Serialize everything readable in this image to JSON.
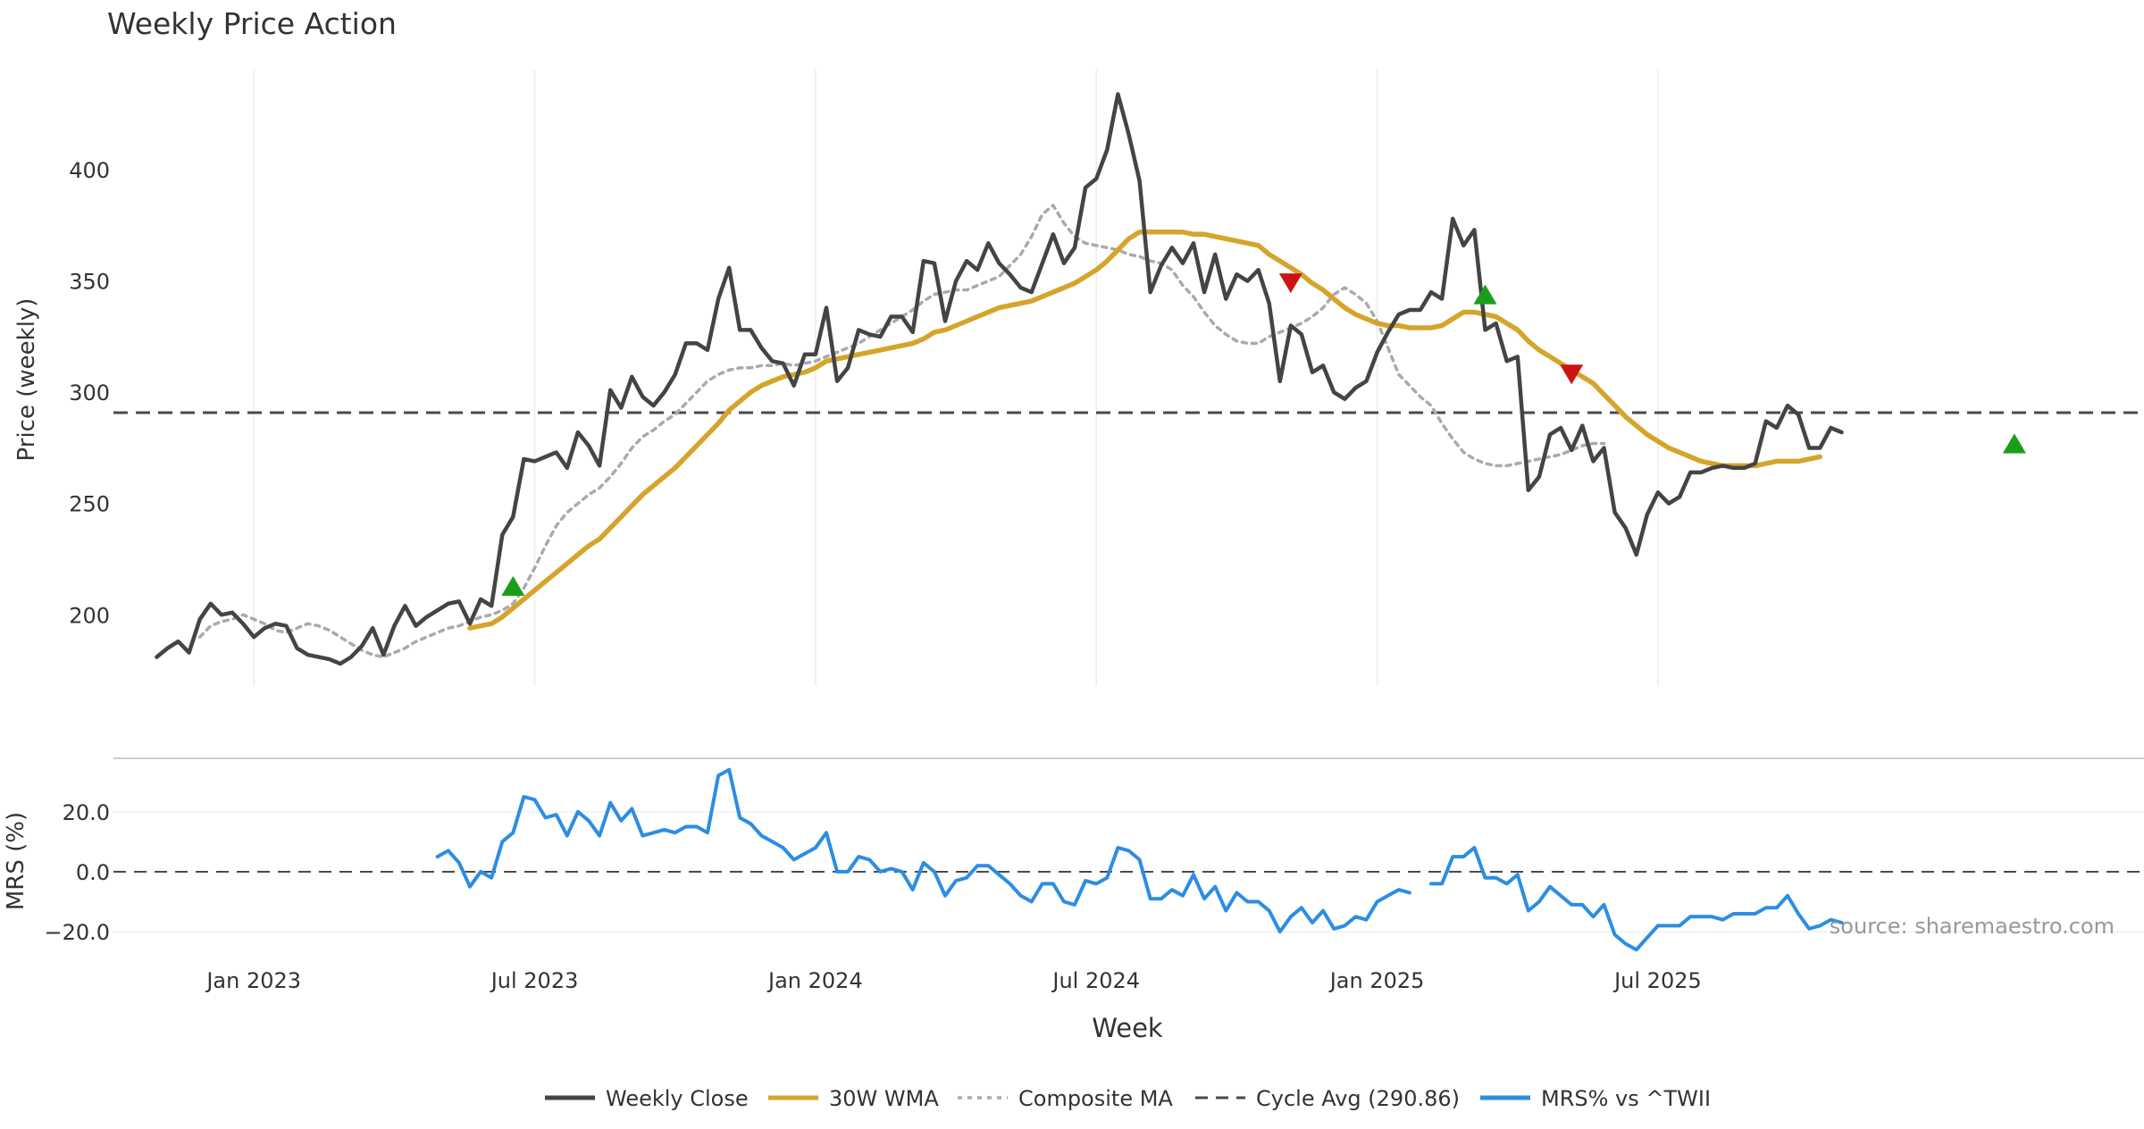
{
  "chart_data": {
    "type": "line",
    "title": "Weekly Price Action",
    "xlabel": "Week",
    "source_note": "source: sharemaestro.com",
    "x_ticks": [
      "Jan 2023",
      "Jul 2023",
      "Jan 2024",
      "Jul 2024",
      "Jan 2025",
      "Jul 2025"
    ],
    "x_range": [
      -4,
      184
    ],
    "x_tick_weeks": [
      9,
      35,
      61,
      87,
      113,
      139
    ],
    "price_panel": {
      "ylabel": "Price (weekly)",
      "ylim": [
        168,
        445
      ],
      "yticks": [
        200,
        250,
        300,
        350,
        400
      ],
      "x_start_week": 0,
      "weekly_close": [
        181,
        185,
        188,
        183,
        198,
        205,
        200,
        201,
        196,
        190,
        194,
        196,
        195,
        185,
        182,
        181,
        180,
        178,
        181,
        186,
        194,
        182,
        195,
        204,
        195,
        199,
        202,
        205,
        206,
        196,
        207,
        204,
        236,
        244,
        270,
        269,
        271,
        273,
        266,
        282,
        276,
        267,
        301,
        293,
        307,
        298,
        294,
        300,
        308,
        322,
        322,
        319,
        342,
        356,
        328,
        328,
        320,
        314,
        313,
        303,
        317,
        317,
        338,
        305,
        311,
        328,
        326,
        325,
        334,
        334,
        327,
        359,
        358,
        332,
        350,
        359,
        355,
        367,
        358,
        353,
        347,
        345,
        358,
        371,
        358,
        365,
        392,
        396,
        409,
        434,
        416,
        395,
        345,
        357,
        365,
        358,
        367,
        345,
        362,
        342,
        353,
        350,
        355,
        340,
        305,
        330,
        326,
        309,
        312,
        300,
        297,
        302,
        305,
        318,
        327,
        335,
        337,
        337,
        345,
        342,
        378,
        366,
        373,
        328,
        331,
        314,
        316,
        256,
        262,
        281,
        284,
        274,
        285,
        269,
        275,
        246,
        239,
        227,
        245,
        255,
        250,
        253,
        264,
        264,
        266,
        267,
        266,
        266,
        268,
        287,
        284,
        294,
        290,
        275,
        275,
        284,
        282
      ],
      "wma30_start_week": 29,
      "wma30": [
        194,
        195,
        196,
        199,
        203,
        207,
        211,
        215,
        219,
        223,
        227,
        231,
        234,
        239,
        244,
        249,
        254,
        258,
        262,
        266,
        271,
        276,
        281,
        286,
        292,
        296,
        300,
        303,
        305,
        307,
        308,
        309,
        311,
        314,
        315,
        316,
        317,
        318,
        319,
        320,
        321,
        322,
        324,
        327,
        328,
        330,
        332,
        334,
        336,
        338,
        339,
        340,
        341,
        343,
        345,
        347,
        349,
        352,
        355,
        359,
        364,
        369,
        372,
        372,
        372,
        372,
        372,
        371,
        371,
        370,
        369,
        368,
        367,
        366,
        362,
        359,
        356,
        353,
        349,
        346,
        342,
        338,
        335,
        333,
        331,
        330,
        330,
        329,
        329,
        329,
        330,
        333,
        336,
        336,
        335,
        334,
        331,
        328,
        323,
        319,
        316,
        313,
        310,
        307,
        304,
        299,
        294,
        289,
        285,
        281,
        278,
        275,
        273,
        271,
        269,
        268,
        267,
        267,
        267,
        267,
        268,
        269,
        269,
        269,
        270,
        271
      ],
      "composite_start_week": 4,
      "composite_ma": [
        190,
        195,
        197,
        198,
        200,
        198,
        196,
        193,
        192,
        194,
        196,
        195,
        193,
        190,
        187,
        184,
        182,
        181,
        183,
        185,
        188,
        190,
        192,
        194,
        195,
        197,
        199,
        200,
        202,
        205,
        212,
        221,
        231,
        240,
        246,
        250,
        254,
        257,
        262,
        268,
        275,
        280,
        283,
        287,
        290,
        295,
        300,
        305,
        308,
        310,
        311,
        311,
        312,
        312,
        313,
        312,
        313,
        314,
        316,
        318,
        320,
        322,
        325,
        328,
        331,
        334,
        337,
        341,
        344,
        345,
        346,
        346,
        348,
        350,
        352,
        357,
        362,
        370,
        380,
        384,
        376,
        370,
        367,
        366,
        365,
        364,
        362,
        361,
        359,
        358,
        355,
        348,
        343,
        336,
        330,
        326,
        323,
        322,
        322,
        325,
        327,
        329,
        331,
        334,
        338,
        344,
        347,
        344,
        340,
        332,
        320,
        308,
        303,
        298,
        294,
        286,
        279,
        273,
        270,
        268,
        267,
        267,
        268,
        269,
        270,
        271,
        272,
        274,
        276,
        277,
        277
      ],
      "cycle_avg": 290.86,
      "cycle_label": "Cycle Avg (290.86)",
      "buy_signals": [
        {
          "week": 33,
          "value": 213
        },
        {
          "week": 123,
          "value": 344
        },
        {
          "week": 172,
          "value": 277
        }
      ],
      "sell_signals": [
        {
          "week": 105,
          "value": 349
        },
        {
          "week": 131,
          "value": 308
        }
      ]
    },
    "mrs_panel": {
      "ylabel": "MRS (%)",
      "ylim": [
        -28,
        36
      ],
      "yticks": [
        20,
        0,
        -20
      ],
      "ytick_labels": [
        "20.0",
        "0.0",
        "−20.0"
      ],
      "x_start_week": 26,
      "mrs_values": [
        5,
        7,
        3,
        -5,
        0,
        -2,
        10,
        13,
        25,
        24,
        18,
        19,
        12,
        20,
        17,
        12,
        23,
        17,
        21,
        12,
        13,
        14,
        13,
        15,
        15,
        13,
        32,
        34,
        18,
        16,
        12,
        10,
        8,
        4,
        6,
        8,
        13,
        0,
        0,
        5,
        4,
        0,
        1,
        0,
        -6,
        3,
        0,
        -8,
        -3,
        -2,
        2,
        2,
        -1,
        -4,
        -8,
        -10,
        -4,
        -4,
        -10,
        -11,
        -3,
        -4,
        -2,
        8,
        7,
        4,
        -9,
        -9,
        -6,
        -8,
        -1,
        -9,
        -5,
        -13,
        -7,
        -10,
        -10,
        -13,
        -20,
        -15,
        -12,
        -17,
        -13,
        -19,
        -18,
        -15,
        -16,
        -10,
        -8,
        -6,
        -7,
        null,
        -4,
        -4,
        5,
        5,
        8,
        -2,
        -2,
        -4,
        -1,
        -13,
        -10,
        -5,
        -8,
        -11,
        -11,
        -15,
        -11,
        -21,
        -24,
        -26,
        -22,
        -18,
        -18,
        -18,
        -15,
        -15,
        -15,
        -16,
        -14,
        -14,
        -14,
        -12,
        -12,
        -8,
        -14,
        -19,
        -18,
        -16,
        -17
      ]
    },
    "legend": {
      "placement": "bottom-center",
      "entries": [
        "Weekly Close",
        "30W WMA",
        "Composite MA",
        "Cycle Avg (290.86)",
        "MRS% vs ^TWII"
      ]
    },
    "colors": {
      "close": "#444444",
      "wma": "#d4a52a",
      "composite": "#aaaaaa",
      "cycle": "#4a4a4a",
      "mrs": "#2c8de3",
      "buy": "#1a9e1a",
      "sell": "#cc1414",
      "grid": "#ececec",
      "text": "#333333",
      "source": "#999999"
    }
  }
}
